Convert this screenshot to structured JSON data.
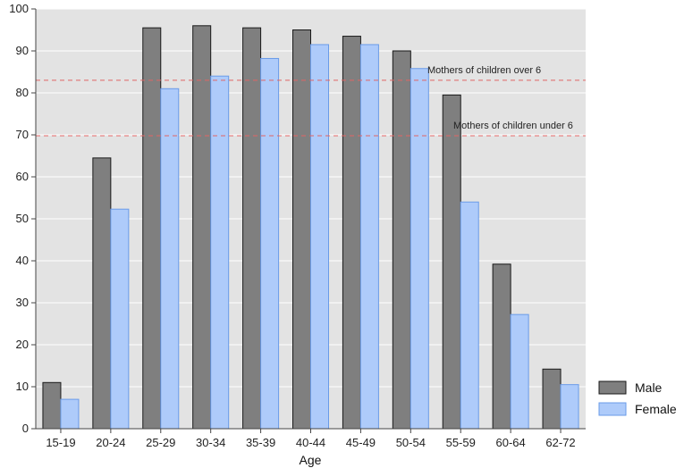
{
  "chart_data": {
    "type": "bar",
    "title": "",
    "xlabel": "Age",
    "ylabel": "",
    "ylim": [
      0,
      100
    ],
    "yticks": [
      0,
      10,
      20,
      30,
      40,
      50,
      60,
      70,
      80,
      90,
      100
    ],
    "grid": true,
    "legend_position": "bottom-right",
    "categories": [
      "15-19",
      "20-24",
      "25-29",
      "30-34",
      "35-39",
      "40-44",
      "45-49",
      "50-54",
      "55-59",
      "60-64",
      "62-72"
    ],
    "series": [
      {
        "name": "Male",
        "color": "#7f7f7f",
        "values": [
          11,
          64.5,
          95.5,
          96,
          95.5,
          95,
          93.5,
          90,
          79.5,
          39.2,
          14.2
        ]
      },
      {
        "name": "Female",
        "color": "#aecbfa",
        "values": [
          7,
          52.3,
          81,
          84,
          88.2,
          91.5,
          91.5,
          85.8,
          54,
          27.2,
          10.5
        ]
      }
    ],
    "reference_lines": [
      {
        "label": "Mothers of children over 6",
        "y": 83,
        "color": "#e06666"
      },
      {
        "label": "Mothers of children under 6",
        "y": 69.8,
        "color": "#e06666"
      }
    ]
  }
}
